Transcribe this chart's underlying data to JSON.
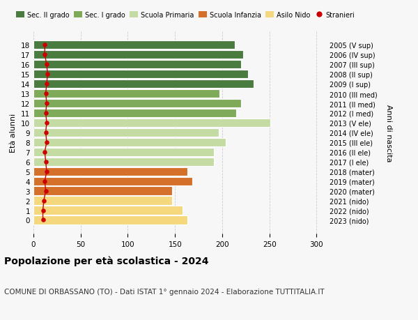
{
  "ages": [
    18,
    17,
    16,
    15,
    14,
    13,
    12,
    11,
    10,
    9,
    8,
    7,
    6,
    5,
    4,
    3,
    2,
    1,
    0
  ],
  "years": [
    "2005 (V sup)",
    "2006 (IV sup)",
    "2007 (III sup)",
    "2008 (II sup)",
    "2009 (I sup)",
    "2010 (III med)",
    "2011 (II med)",
    "2012 (I med)",
    "2013 (V ele)",
    "2014 (IV ele)",
    "2015 (III ele)",
    "2016 (II ele)",
    "2017 (I ele)",
    "2018 (mater)",
    "2019 (mater)",
    "2020 (mater)",
    "2021 (nido)",
    "2022 (nido)",
    "2023 (nido)"
  ],
  "values": [
    213,
    222,
    220,
    227,
    233,
    197,
    220,
    215,
    251,
    196,
    204,
    191,
    191,
    163,
    168,
    147,
    147,
    158,
    163
  ],
  "stranieri": [
    12,
    12,
    14,
    15,
    14,
    13,
    14,
    13,
    14,
    13,
    14,
    12,
    13,
    14,
    12,
    13,
    11,
    10,
    10
  ],
  "bar_colors": [
    "#4a7c3f",
    "#4a7c3f",
    "#4a7c3f",
    "#4a7c3f",
    "#4a7c3f",
    "#7eaa5a",
    "#7eaa5a",
    "#7eaa5a",
    "#c5dba4",
    "#c5dba4",
    "#c5dba4",
    "#c5dba4",
    "#c5dba4",
    "#d4702a",
    "#d4702a",
    "#d4702a",
    "#f5d87e",
    "#f5d87e",
    "#f5d87e"
  ],
  "title": "Popolazione per età scolastica - 2024",
  "subtitle": "COMUNE DI ORBASSANO (TO) - Dati ISTAT 1° gennaio 2024 - Elaborazione TUTTITALIA.IT",
  "ylabel": "Età alunni",
  "right_label": "Anni di nascita",
  "xlim": [
    0,
    310
  ],
  "xticks": [
    0,
    50,
    100,
    150,
    200,
    250,
    300
  ],
  "legend_labels": [
    "Sec. II grado",
    "Sec. I grado",
    "Scuola Primaria",
    "Scuola Infanzia",
    "Asilo Nido",
    "Stranieri"
  ],
  "legend_colors": [
    "#4a7c3f",
    "#7eaa5a",
    "#c5dba4",
    "#d4702a",
    "#f5d87e",
    "#cc0000"
  ],
  "stranieri_color": "#cc0000",
  "bg_color": "#f7f7f7"
}
